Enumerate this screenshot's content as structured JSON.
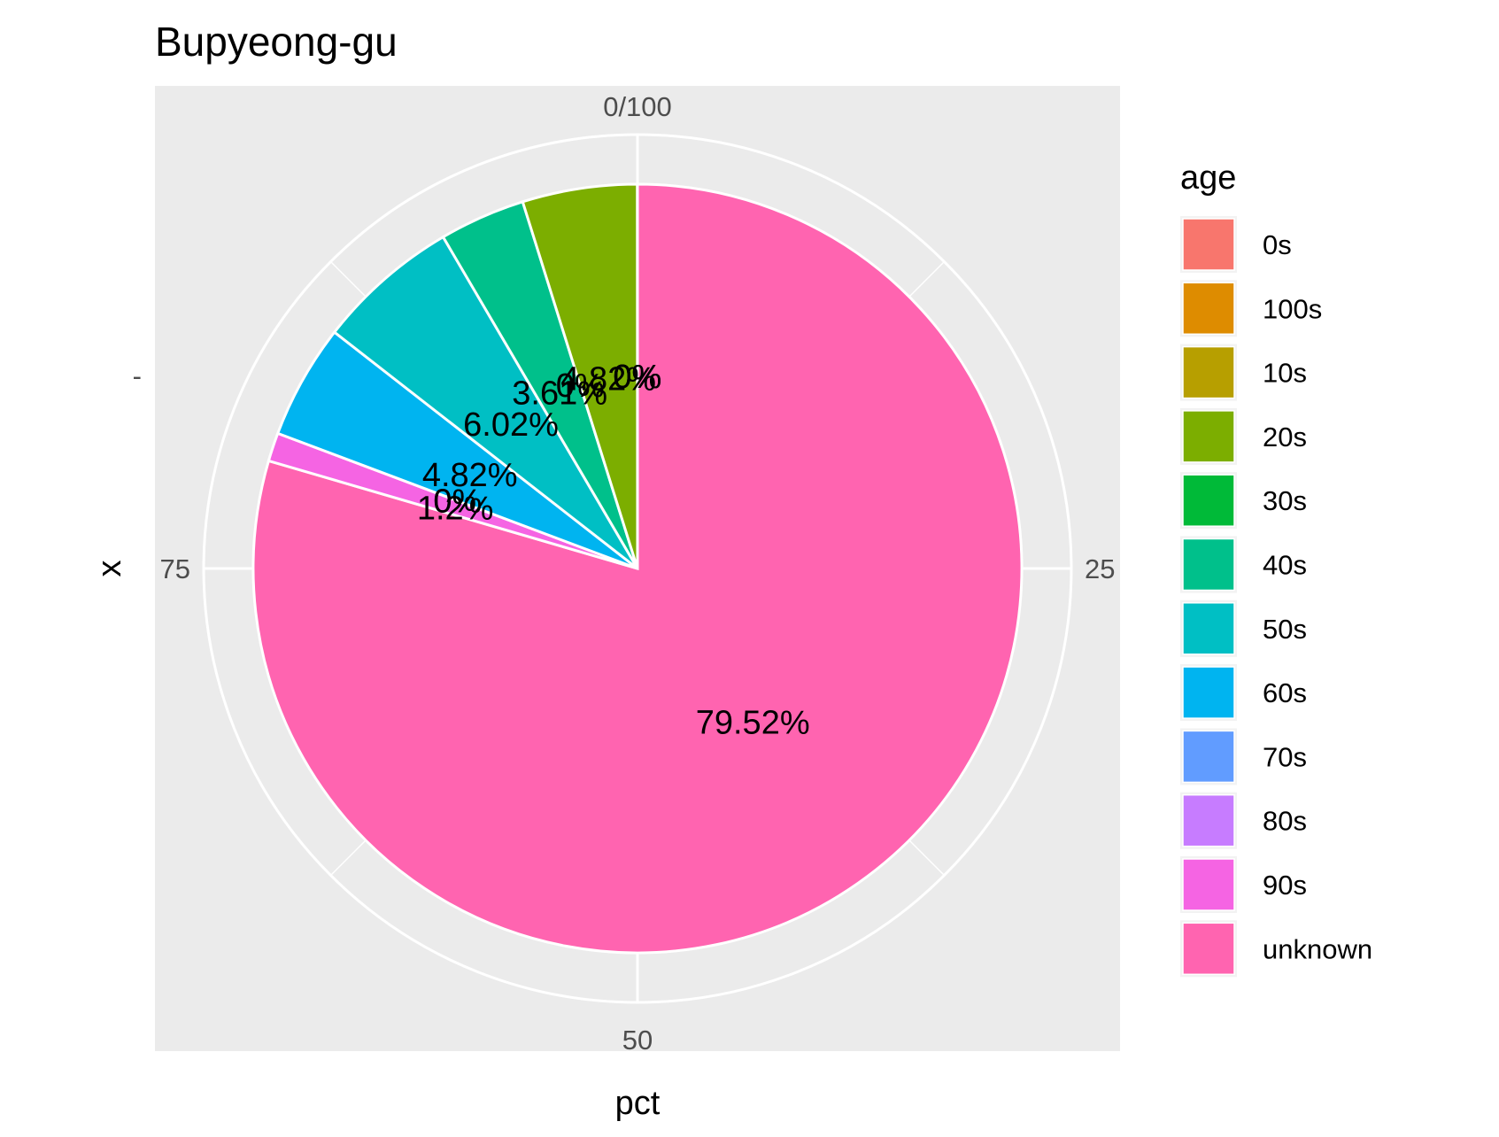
{
  "chart_data": {
    "type": "pie",
    "title": "Bupyeong-gu",
    "xlabel": "pct",
    "ylabel": "x",
    "y_tick_labels": [
      "-"
    ],
    "theta_ticks": [
      {
        "value": 0,
        "label": "0/100"
      },
      {
        "value": 25,
        "label": "25"
      },
      {
        "value": 50,
        "label": "50"
      },
      {
        "value": 75,
        "label": "75"
      }
    ],
    "legend_title": "age",
    "legend_position": "right",
    "slices": [
      {
        "category": "0s",
        "value": 0,
        "label": "0%",
        "color": "#F8766D"
      },
      {
        "category": "100s",
        "value": 0,
        "label": "0%",
        "color": "#DE8C00"
      },
      {
        "category": "10s",
        "value": 0,
        "label": "0%",
        "color": "#B79F00"
      },
      {
        "category": "20s",
        "value": 4.82,
        "label": "4.82%",
        "color": "#7CAE00"
      },
      {
        "category": "30s",
        "value": 0,
        "label": "0%",
        "color": "#00BA38"
      },
      {
        "category": "40s",
        "value": 3.61,
        "label": "3.61%",
        "color": "#00C08B"
      },
      {
        "category": "50s",
        "value": 6.02,
        "label": "6.02%",
        "color": "#00BFC4"
      },
      {
        "category": "60s",
        "value": 4.82,
        "label": "4.82%",
        "color": "#00B4F0"
      },
      {
        "category": "70s",
        "value": 0,
        "label": "0%",
        "color": "#619CFF"
      },
      {
        "category": "80s",
        "value": 0,
        "label": "0%",
        "color": "#C77CFF"
      },
      {
        "category": "90s",
        "value": 1.2,
        "label": "1.2%",
        "color": "#F564E3"
      },
      {
        "category": "unknown",
        "value": 79.52,
        "label": "79.52%",
        "color": "#FF64B0"
      }
    ]
  }
}
